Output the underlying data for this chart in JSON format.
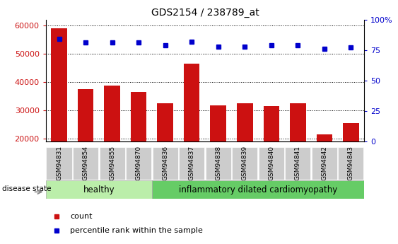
{
  "title": "GDS2154 / 238789_at",
  "samples": [
    "GSM94831",
    "GSM94854",
    "GSM94855",
    "GSM94870",
    "GSM94836",
    "GSM94837",
    "GSM94838",
    "GSM94839",
    "GSM94840",
    "GSM94841",
    "GSM94842",
    "GSM94843"
  ],
  "counts": [
    59000,
    37500,
    38700,
    36500,
    32500,
    46500,
    31700,
    32500,
    31400,
    32500,
    21500,
    25500
  ],
  "percentiles": [
    84,
    81,
    81,
    81,
    79,
    82,
    78,
    78,
    79,
    79,
    76,
    77
  ],
  "bar_color": "#cc1111",
  "dot_color": "#0000cc",
  "n_healthy": 4,
  "n_disease": 8,
  "ylim_left": [
    19000,
    62000
  ],
  "ylim_right": [
    0,
    100
  ],
  "yticks_left": [
    20000,
    30000,
    40000,
    50000,
    60000
  ],
  "yticks_right": [
    0,
    25,
    50,
    75,
    100
  ],
  "left_tick_color": "#cc1111",
  "right_tick_color": "#0000cc",
  "healthy_color": "#bbeeaa",
  "disease_color": "#66cc66",
  "group_label_healthy": "healthy",
  "group_label_disease": "inflammatory dilated cardiomyopathy",
  "legend_count_label": "count",
  "legend_pct_label": "percentile rank within the sample",
  "disease_state_label": "disease state",
  "background_color": "#ffffff",
  "xtick_bg_color": "#cccccc",
  "bar_width": 0.6
}
